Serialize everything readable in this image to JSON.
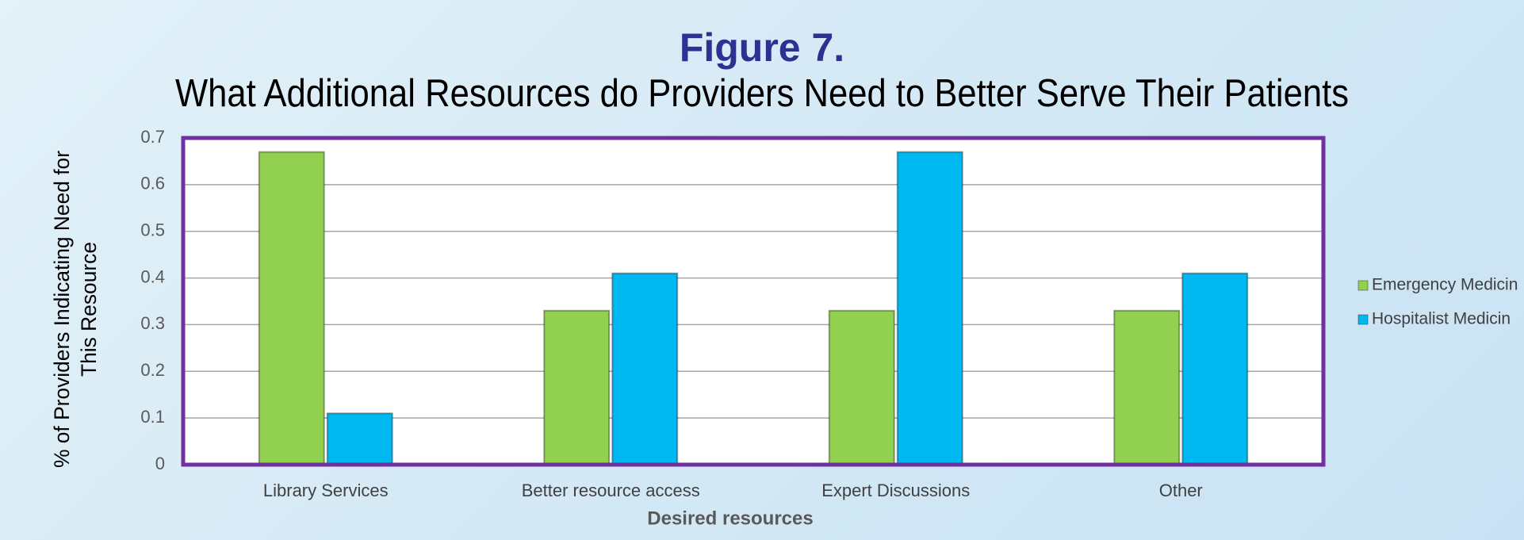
{
  "chart_data": {
    "type": "bar",
    "title": "Figure 7.",
    "subtitle": "What Additional Resources do Providers Need to Better Serve Their Patients",
    "xlabel": "Desired resources",
    "ylabel": [
      "% of Providers Indicating Need for",
      "This Resource"
    ],
    "categories": [
      "Library Services",
      "Better resource access",
      "Expert Discussions",
      "Other"
    ],
    "series": [
      {
        "name": "Emergency Medicin",
        "color": "#92d050",
        "values": [
          0.67,
          0.33,
          0.33,
          0.33
        ]
      },
      {
        "name": "Hospitalist Medicin",
        "color": "#00b8f0",
        "values": [
          0.11,
          0.41,
          0.67,
          0.41
        ]
      }
    ],
    "ylim": [
      0,
      0.7
    ],
    "yticks": [
      0,
      0.1,
      0.2,
      0.3,
      0.4,
      0.5,
      0.6,
      0.7
    ],
    "grid": true,
    "legend": "right"
  }
}
